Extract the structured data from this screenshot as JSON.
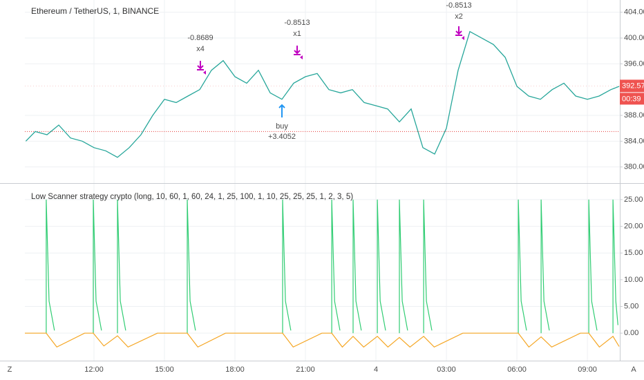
{
  "toolbar": {
    "left": "Z",
    "right": "A"
  },
  "chart_data": [
    {
      "type": "line",
      "title": "Ethereum / TetherUS, 1, BINANCE",
      "color": "#26a69a",
      "x": [
        9.1,
        9.5,
        10,
        10.5,
        11,
        11.5,
        12,
        12.5,
        13,
        13.5,
        14,
        14.5,
        15,
        15.5,
        16,
        16.5,
        17,
        17.5,
        18,
        18.5,
        19,
        19.5,
        20,
        20.5,
        21,
        21.5,
        22,
        22.5,
        23,
        23.5,
        24,
        24.5,
        25,
        25.5,
        26,
        26.5,
        27,
        27.5,
        28,
        28.5,
        29,
        29.5,
        30,
        30.5,
        31,
        31.5,
        32,
        32.5,
        33,
        33.5,
        34,
        34.35
      ],
      "values": [
        384,
        385.5,
        385,
        386.5,
        384.5,
        384,
        383,
        382.5,
        381.5,
        383,
        385,
        388,
        390.5,
        390,
        391,
        392,
        395,
        396.5,
        394,
        393,
        395,
        391.5,
        390.5,
        393,
        394,
        394.5,
        392,
        391.5,
        392,
        390,
        389.5,
        389,
        387,
        389,
        383,
        382,
        386,
        395,
        401,
        400,
        399,
        397,
        392.5,
        391,
        390.5,
        392,
        393,
        391,
        390.5,
        391,
        392,
        392.5
      ],
      "hline": 385.5,
      "hline_color": "#e53935",
      "last_price": 392.57,
      "countdown": "00:39",
      "trades": [
        {
          "label": "-0.8689",
          "qty": "x4"
        },
        {
          "label": "-0.8513",
          "qty": "x1"
        },
        {
          "label": "-0.8513",
          "qty": "x2"
        }
      ],
      "buy": {
        "label": "buy",
        "value": "+3.4052"
      },
      "xlim": [
        9.06,
        34.38
      ],
      "xticks": [
        {
          "value": 12,
          "label": "12:00"
        },
        {
          "value": 15,
          "label": "15:00"
        },
        {
          "value": 18,
          "label": "18:00"
        },
        {
          "value": 21,
          "label": "21:00"
        },
        {
          "value": 24,
          "label": "4"
        },
        {
          "value": 27,
          "label": "03:00"
        },
        {
          "value": 30,
          "label": "06:00"
        },
        {
          "value": 33,
          "label": "09:00"
        }
      ],
      "ylim": [
        377.5,
        405.9
      ],
      "yticks": [
        {
          "value": 380,
          "label": "380.00"
        },
        {
          "value": 384,
          "label": "384.00"
        },
        {
          "value": 388,
          "label": "388.00"
        },
        {
          "value": 396,
          "label": "396.00"
        },
        {
          "value": 400,
          "label": "400.00"
        },
        {
          "value": 404,
          "label": "404.00"
        }
      ],
      "grid": true
    },
    {
      "type": "line",
      "title": "Low Scanner strategy crypto (long, 10, 60, 1, 60, 24, 1, 25, 100, 1, 10, 25, 25, 25, 1, 2, 3, 5)",
      "series": [
        {
          "color": "#2ecc71",
          "x": [
            9.97,
            9.97,
            10.09,
            10.32,
            null,
            11.97,
            11.97,
            12.09,
            12.32,
            null,
            13.0,
            13.0,
            13.12,
            13.35,
            null,
            15.97,
            15.97,
            16.09,
            16.32,
            null,
            20.03,
            20.03,
            20.15,
            20.38,
            null,
            22.12,
            22.12,
            22.24,
            22.47,
            null,
            23.03,
            23.03,
            23.15,
            23.38,
            null,
            24.06,
            24.06,
            24.18,
            24.41,
            null,
            25.0,
            25.0,
            25.12,
            25.35,
            null,
            26.03,
            26.03,
            26.15,
            26.38,
            null,
            30.06,
            30.06,
            30.18,
            30.41,
            null,
            31.03,
            31.03,
            31.15,
            31.38,
            null,
            33.06,
            33.06,
            33.18,
            33.41,
            null,
            34.09,
            34.09,
            34.21,
            34.3
          ],
          "values": [
            0,
            25,
            6,
            0.5,
            null,
            0,
            25,
            6,
            0.5,
            null,
            0,
            25,
            6,
            0.5,
            null,
            0,
            25,
            6,
            0.5,
            null,
            0,
            25,
            6,
            0.5,
            null,
            0,
            25,
            6,
            0.5,
            null,
            0,
            25,
            6,
            0.5,
            null,
            0,
            25,
            6,
            0.5,
            null,
            0,
            25,
            6,
            0.5,
            null,
            0,
            25,
            6,
            0.5,
            null,
            0,
            25,
            6,
            0.5,
            null,
            0,
            25,
            6,
            0.5,
            null,
            0,
            25,
            6,
            0.5,
            null,
            0,
            25,
            6,
            1.5
          ]
        },
        {
          "color": "#f5a623",
          "x": [
            9.06,
            9.97,
            10.42,
            11.6,
            11.97,
            12.42,
            13.0,
            13.45,
            14.7,
            15.97,
            16.42,
            17.6,
            20.03,
            20.48,
            21.7,
            22.12,
            22.57,
            23.03,
            23.48,
            24.06,
            24.51,
            25.0,
            25.45,
            26.03,
            26.48,
            27.7,
            30.06,
            30.51,
            31.03,
            31.48,
            32.7,
            33.06,
            33.51,
            34.09,
            34.35
          ],
          "values": [
            0,
            0,
            -2.6,
            0,
            0,
            -2.4,
            -0.5,
            -2.6,
            0,
            0,
            -2.6,
            0,
            0,
            -2.6,
            0,
            0,
            -2.6,
            -0.6,
            -2.6,
            -0.6,
            -2.6,
            -0.8,
            -2.6,
            -0.6,
            -2.6,
            0,
            0,
            -2.6,
            -0.7,
            -2.6,
            0,
            0,
            -2.6,
            -0.6,
            -2.5
          ]
        }
      ],
      "xlim": [
        9.06,
        34.38
      ],
      "ylim": [
        -5.15,
        27.96
      ],
      "yticks": [
        {
          "value": 0,
          "label": "0.00"
        },
        {
          "value": 5,
          "label": "5.00"
        },
        {
          "value": 10,
          "label": "10.00"
        },
        {
          "value": 15,
          "label": "15.00"
        },
        {
          "value": 20,
          "label": "20.00"
        },
        {
          "value": 25,
          "label": "25.00"
        }
      ],
      "grid": true
    }
  ]
}
